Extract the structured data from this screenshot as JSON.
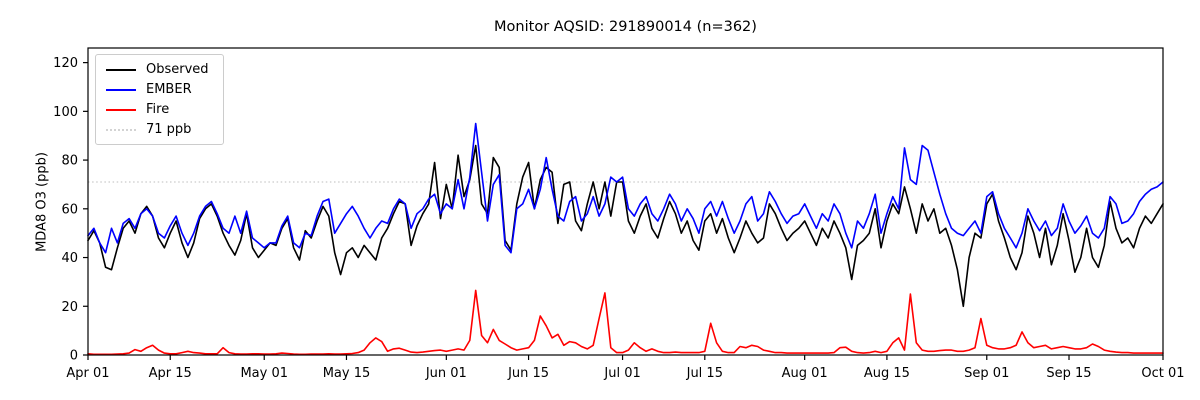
{
  "title": "Monitor AQSID: 291890014 (n=362)",
  "ylabel": "MDA8 O3 (ppb)",
  "colors": {
    "observed": "#000000",
    "ember": "#0000ff",
    "fire": "#ff0000",
    "threshold": "#d3d3d3"
  },
  "legend": {
    "items": [
      {
        "label": "Observed",
        "color": "#000000",
        "style": "solid"
      },
      {
        "label": "EMBER",
        "color": "#0000ff",
        "style": "solid"
      },
      {
        "label": "Fire",
        "color": "#ff0000",
        "style": "solid"
      },
      {
        "label": "71 ppb",
        "color": "#d3d3d3",
        "style": "dotted"
      }
    ]
  },
  "chart_data": {
    "type": "line",
    "title": "Monitor AQSID: 291890014 (n=362)",
    "xlabel": "",
    "ylabel": "MDA8 O3 (ppb)",
    "x_unit": "day index from Apr 01",
    "x_tick_labels": [
      "Apr 01",
      "Apr 15",
      "May 01",
      "May 15",
      "Jun 01",
      "Jun 15",
      "Jul 01",
      "Jul 15",
      "Aug 01",
      "Aug 15",
      "Sep 01",
      "Sep 15",
      "Oct 01"
    ],
    "x_tick_days": [
      0,
      14,
      30,
      44,
      61,
      75,
      91,
      105,
      122,
      136,
      153,
      167,
      183
    ],
    "xlim": [
      0,
      183
    ],
    "ylim": [
      0,
      126
    ],
    "yticks": [
      0,
      20,
      40,
      60,
      80,
      100,
      120
    ],
    "grid": false,
    "legend_position": "upper left",
    "threshold": {
      "value": 71,
      "label": "71 ppb",
      "color": "#d3d3d3"
    },
    "series": [
      {
        "name": "Observed",
        "color": "#000000",
        "values": [
          47,
          51,
          46,
          36,
          35,
          44,
          52,
          55,
          50,
          58,
          61,
          57,
          48,
          44,
          50,
          55,
          46,
          40,
          46,
          56,
          60,
          62,
          57,
          50,
          45,
          41,
          47,
          58,
          44,
          40,
          43,
          46,
          45,
          52,
          56,
          44,
          39,
          51,
          48,
          55,
          61,
          57,
          42,
          33,
          42,
          44,
          40,
          45,
          42,
          39,
          48,
          52,
          58,
          63,
          62,
          45,
          53,
          58,
          62,
          79,
          56,
          70,
          60,
          82,
          65,
          72,
          86,
          62,
          58,
          81,
          77,
          47,
          43,
          62,
          73,
          79,
          60,
          72,
          77,
          75,
          54,
          70,
          71,
          55,
          51,
          62,
          71,
          60,
          71,
          57,
          71,
          71,
          55,
          50,
          57,
          62,
          52,
          48,
          56,
          63,
          58,
          50,
          55,
          47,
          43,
          55,
          58,
          50,
          56,
          48,
          42,
          48,
          55,
          50,
          46,
          48,
          62,
          58,
          52,
          47,
          50,
          52,
          55,
          50,
          45,
          52,
          48,
          55,
          50,
          44,
          31,
          45,
          47,
          50,
          60,
          44,
          55,
          62,
          58,
          69,
          60,
          50,
          62,
          55,
          60,
          50,
          52,
          45,
          35,
          20,
          40,
          50,
          48,
          62,
          66,
          55,
          48,
          40,
          35,
          42,
          57,
          50,
          40,
          52,
          37,
          45,
          58,
          47,
          34,
          40,
          52,
          40,
          36,
          45,
          63,
          52,
          46,
          48,
          44,
          52,
          57,
          54,
          58,
          62
        ]
      },
      {
        "name": "EMBER",
        "color": "#0000ff",
        "values": [
          49,
          52,
          46,
          42,
          52,
          46,
          54,
          56,
          52,
          58,
          60,
          57,
          50,
          48,
          53,
          57,
          50,
          45,
          50,
          57,
          61,
          63,
          58,
          52,
          50,
          57,
          50,
          59,
          48,
          46,
          44,
          46,
          46,
          53,
          57,
          46,
          44,
          50,
          49,
          57,
          63,
          64,
          50,
          54,
          58,
          61,
          57,
          52,
          48,
          52,
          55,
          54,
          60,
          64,
          62,
          52,
          58,
          60,
          64,
          66,
          58,
          62,
          60,
          72,
          60,
          73,
          95,
          75,
          55,
          70,
          74,
          45,
          42,
          60,
          62,
          68,
          60,
          68,
          81,
          68,
          57,
          55,
          63,
          65,
          55,
          58,
          65,
          57,
          62,
          73,
          71,
          73,
          60,
          57,
          62,
          65,
          58,
          55,
          60,
          66,
          62,
          55,
          60,
          56,
          50,
          60,
          63,
          57,
          63,
          56,
          50,
          55,
          62,
          65,
          55,
          58,
          67,
          63,
          58,
          54,
          57,
          58,
          62,
          57,
          52,
          58,
          55,
          62,
          58,
          50,
          44,
          55,
          52,
          58,
          66,
          50,
          58,
          65,
          60,
          85,
          72,
          70,
          86,
          84,
          75,
          66,
          58,
          52,
          50,
          49,
          52,
          55,
          50,
          65,
          67,
          58,
          52,
          48,
          44,
          50,
          60,
          55,
          51,
          55,
          49,
          52,
          62,
          55,
          50,
          53,
          57,
          50,
          48,
          52,
          65,
          62,
          54,
          55,
          58,
          63,
          66,
          68,
          69,
          71
        ]
      },
      {
        "name": "Fire",
        "color": "#ff0000",
        "values": [
          0.5,
          0.3,
          0.3,
          0.3,
          0.3,
          0.4,
          0.5,
          0.8,
          2.2,
          1.5,
          3,
          4,
          2,
          0.8,
          0.5,
          0.5,
          1,
          1.5,
          1,
          0.8,
          0.5,
          0.5,
          0.5,
          3,
          1,
          0.5,
          0.4,
          0.4,
          0.5,
          0.5,
          0.4,
          0.4,
          0.5,
          0.8,
          0.6,
          0.4,
          0.3,
          0.3,
          0.4,
          0.4,
          0.4,
          0.5,
          0.4,
          0.4,
          0.5,
          0.6,
          1,
          2,
          5,
          7,
          5.5,
          1.5,
          2.5,
          2.8,
          2,
          1.2,
          1,
          1.2,
          1.5,
          1.8,
          2,
          1.5,
          2,
          2.5,
          2,
          6,
          26.5,
          8,
          5,
          10.5,
          6,
          4.5,
          3,
          2,
          2.5,
          3,
          6,
          16,
          12,
          7,
          8.5,
          4,
          5.5,
          5,
          3.5,
          2.5,
          4,
          15,
          25.5,
          3,
          1,
          1,
          2,
          5,
          3,
          1.5,
          2.5,
          1.5,
          1,
          1,
          1.2,
          1,
          1,
          1,
          1,
          1.5,
          13,
          5,
          1.5,
          1,
          1,
          3.5,
          3,
          4,
          3.5,
          2,
          1.5,
          1,
          1,
          0.8,
          0.8,
          0.8,
          0.8,
          0.8,
          0.8,
          0.8,
          0.8,
          1,
          3,
          3.2,
          1.5,
          1,
          0.8,
          1,
          1.5,
          1,
          1.5,
          5,
          7,
          2,
          25,
          5,
          2,
          1.5,
          1.5,
          1.8,
          2,
          2,
          1.5,
          1.5,
          2,
          3,
          15,
          4,
          3,
          2.5,
          2.5,
          3,
          4,
          9.5,
          5,
          3,
          3.5,
          4,
          2.5,
          3,
          3.5,
          3,
          2.5,
          2.5,
          3,
          4.5,
          3.5,
          2,
          1.5,
          1.2,
          1,
          1,
          0.8,
          0.8,
          0.8,
          0.8,
          0.8,
          0.8
        ]
      }
    ]
  }
}
